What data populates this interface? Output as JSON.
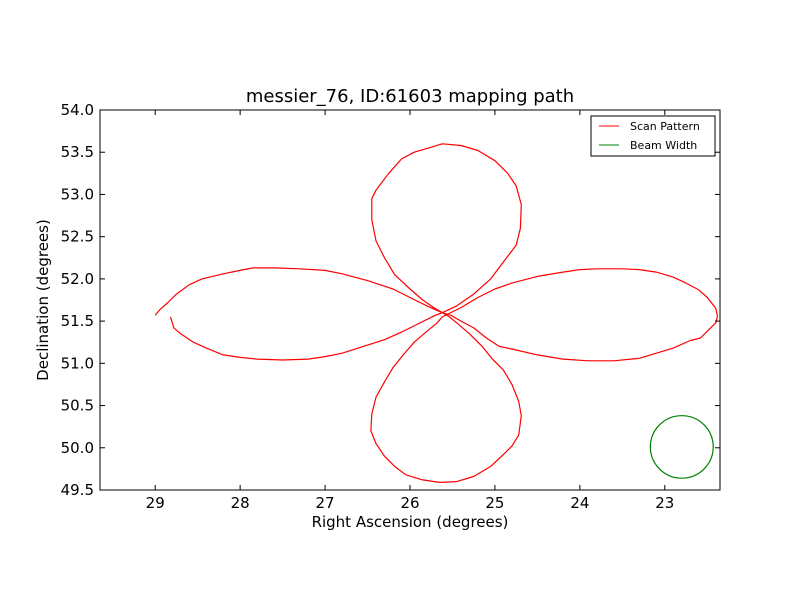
{
  "chart_data": {
    "type": "line",
    "title": "messier_76, ID:61603 mapping path",
    "xlabel": "Right Ascension (degrees)",
    "ylabel": "Declination (degrees)",
    "xlim": [
      29.65,
      22.35
    ],
    "ylim": [
      49.5,
      54.0
    ],
    "x_ticks": [
      29,
      28,
      27,
      26,
      25,
      24,
      23
    ],
    "x_tick_labels": [
      "29",
      "28",
      "27",
      "26",
      "25",
      "24",
      "23"
    ],
    "y_ticks": [
      49.5,
      50.0,
      50.5,
      51.0,
      51.5,
      52.0,
      52.5,
      53.0,
      53.5,
      54.0
    ],
    "y_tick_labels": [
      "49.5",
      "50.0",
      "50.5",
      "51.0",
      "51.5",
      "52.0",
      "52.5",
      "53.0",
      "53.5",
      "54.0"
    ],
    "grid": false,
    "legend_position": "top-right",
    "series": [
      {
        "name": "Scan Pattern",
        "color": "#ff0000",
        "kind": "path",
        "points": [
          [
            28.82,
            51.55
          ],
          [
            28.78,
            51.42
          ],
          [
            28.7,
            51.35
          ],
          [
            28.55,
            51.25
          ],
          [
            28.4,
            51.18
          ],
          [
            28.2,
            51.1
          ],
          [
            28.0,
            51.07
          ],
          [
            27.8,
            51.05
          ],
          [
            27.5,
            51.04
          ],
          [
            27.2,
            51.05
          ],
          [
            27.0,
            51.08
          ],
          [
            26.8,
            51.12
          ],
          [
            26.55,
            51.2
          ],
          [
            26.3,
            51.28
          ],
          [
            26.1,
            51.37
          ],
          [
            25.9,
            51.47
          ],
          [
            25.78,
            51.53
          ],
          [
            25.7,
            51.57
          ],
          [
            25.62,
            51.6
          ],
          [
            25.52,
            51.57
          ],
          [
            25.4,
            51.5
          ],
          [
            25.25,
            51.42
          ],
          [
            25.1,
            51.3
          ],
          [
            24.95,
            51.2
          ],
          [
            24.8,
            51.17
          ],
          [
            24.5,
            51.1
          ],
          [
            24.2,
            51.05
          ],
          [
            23.9,
            51.03
          ],
          [
            23.6,
            51.03
          ],
          [
            23.3,
            51.06
          ],
          [
            23.1,
            51.12
          ],
          [
            22.9,
            51.18
          ],
          [
            22.7,
            51.27
          ],
          [
            22.58,
            51.3
          ],
          [
            22.5,
            51.38
          ],
          [
            22.4,
            51.48
          ],
          [
            22.38,
            51.56
          ],
          [
            22.4,
            51.65
          ],
          [
            22.5,
            51.78
          ],
          [
            22.6,
            51.87
          ],
          [
            22.75,
            51.95
          ],
          [
            22.9,
            52.02
          ],
          [
            23.1,
            52.08
          ],
          [
            23.3,
            52.11
          ],
          [
            23.5,
            52.12
          ],
          [
            23.8,
            52.12
          ],
          [
            24.0,
            52.11
          ],
          [
            24.2,
            52.08
          ],
          [
            24.5,
            52.03
          ],
          [
            24.8,
            51.95
          ],
          [
            25.0,
            51.88
          ],
          [
            25.2,
            51.78
          ],
          [
            25.4,
            51.66
          ],
          [
            25.62,
            51.55
          ],
          [
            25.68,
            51.48
          ],
          [
            25.8,
            51.38
          ],
          [
            25.95,
            51.25
          ],
          [
            26.08,
            51.1
          ],
          [
            26.2,
            50.95
          ],
          [
            26.3,
            50.78
          ],
          [
            26.4,
            50.6
          ],
          [
            26.45,
            50.4
          ],
          [
            26.46,
            50.2
          ],
          [
            26.4,
            50.05
          ],
          [
            26.3,
            49.9
          ],
          [
            26.18,
            49.78
          ],
          [
            26.05,
            49.68
          ],
          [
            25.85,
            49.62
          ],
          [
            25.65,
            49.59
          ],
          [
            25.45,
            49.6
          ],
          [
            25.25,
            49.66
          ],
          [
            25.05,
            49.78
          ],
          [
            24.9,
            49.92
          ],
          [
            24.8,
            50.02
          ],
          [
            24.72,
            50.15
          ],
          [
            24.69,
            50.38
          ],
          [
            24.72,
            50.55
          ],
          [
            24.8,
            50.75
          ],
          [
            24.9,
            50.92
          ],
          [
            25.03,
            51.05
          ],
          [
            25.15,
            51.2
          ],
          [
            25.3,
            51.35
          ],
          [
            25.45,
            51.48
          ],
          [
            25.55,
            51.56
          ],
          [
            25.62,
            51.6
          ],
          [
            25.72,
            51.66
          ],
          [
            25.85,
            51.75
          ],
          [
            26.0,
            51.88
          ],
          [
            26.18,
            52.05
          ],
          [
            26.3,
            52.25
          ],
          [
            26.4,
            52.45
          ],
          [
            26.45,
            52.7
          ],
          [
            26.45,
            52.95
          ],
          [
            26.4,
            53.05
          ],
          [
            26.25,
            53.25
          ],
          [
            26.1,
            53.42
          ],
          [
            25.95,
            53.5
          ],
          [
            25.75,
            53.56
          ],
          [
            25.62,
            53.6
          ],
          [
            25.4,
            53.58
          ],
          [
            25.2,
            53.52
          ],
          [
            25.0,
            53.4
          ],
          [
            24.85,
            53.25
          ],
          [
            24.75,
            53.1
          ],
          [
            24.69,
            52.88
          ],
          [
            24.7,
            52.6
          ],
          [
            24.75,
            52.4
          ],
          [
            24.9,
            52.2
          ],
          [
            25.05,
            52.0
          ],
          [
            25.25,
            51.82
          ],
          [
            25.45,
            51.68
          ],
          [
            25.62,
            51.6
          ],
          [
            25.8,
            51.68
          ],
          [
            26.0,
            51.78
          ],
          [
            26.2,
            51.88
          ],
          [
            26.5,
            51.98
          ],
          [
            26.8,
            52.06
          ],
          [
            27.0,
            52.1
          ],
          [
            27.3,
            52.12
          ],
          [
            27.6,
            52.13
          ],
          [
            27.85,
            52.13
          ],
          [
            28.0,
            52.1
          ],
          [
            28.2,
            52.06
          ],
          [
            28.45,
            52.0
          ],
          [
            28.6,
            51.93
          ],
          [
            28.75,
            51.82
          ],
          [
            28.85,
            51.72
          ],
          [
            28.95,
            51.63
          ],
          [
            29.0,
            51.57
          ]
        ]
      },
      {
        "name": "Beam Width",
        "color": "#008000",
        "kind": "circle",
        "center": [
          22.8,
          50.01
        ],
        "radius": 0.37
      }
    ]
  }
}
